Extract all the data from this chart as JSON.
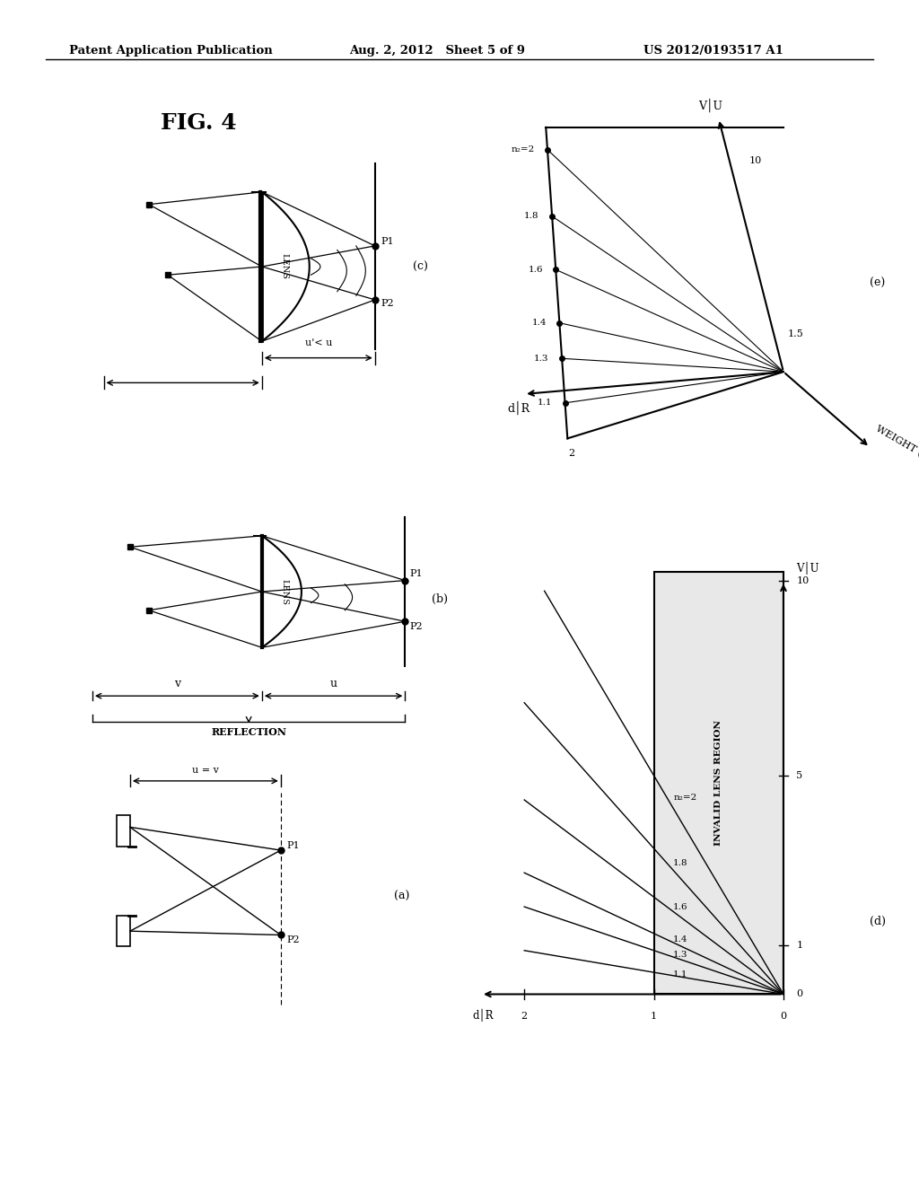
{
  "header_left": "Patent Application Publication",
  "header_mid": "Aug. 2, 2012   Sheet 5 of 9",
  "header_right": "US 2012/0193517 A1",
  "fig_label": "FIG. 4",
  "background_color": "#ffffff"
}
